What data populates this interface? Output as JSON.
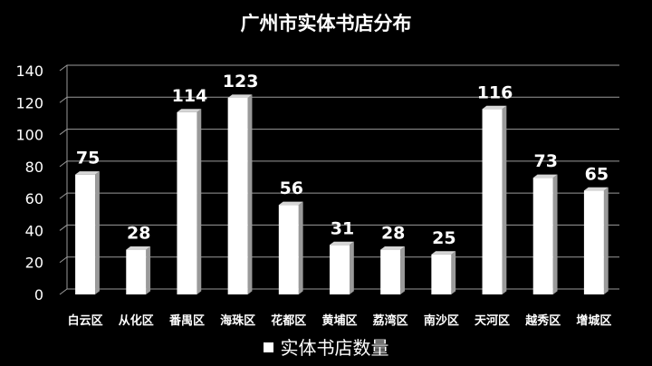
{
  "chart_data": {
    "type": "bar",
    "title": "广州市实体书店分布",
    "categories": [
      "白云区",
      "从化区",
      "番禺区",
      "海珠区",
      "花都区",
      "黄埔区",
      "荔湾区",
      "南沙区",
      "天河区",
      "越秀区",
      "增城区"
    ],
    "series": [
      {
        "name": "实体书店数量",
        "values": [
          75,
          28,
          114,
          123,
          56,
          31,
          28,
          25,
          116,
          73,
          65
        ]
      }
    ],
    "yticks": [
      0,
      20,
      40,
      60,
      80,
      100,
      120,
      140
    ],
    "ylim": [
      0,
      140
    ],
    "grid": true,
    "legend": "bottom",
    "colors": {
      "background": "#000000",
      "bar": "#ffffff",
      "bar_side": "#9a9a9a",
      "bar_top": "#d6d6d6",
      "gridline": "#9a9a9a",
      "text": "#ffffff"
    }
  }
}
